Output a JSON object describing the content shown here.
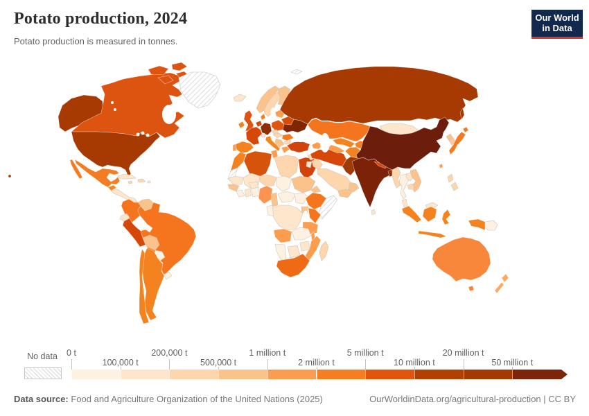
{
  "header": {
    "title": "Potato production, 2024",
    "subtitle": "Potato production is measured in tonnes.",
    "logo": {
      "line1": "Our World",
      "line2": "in Data",
      "bg": "#12294d",
      "accent": "#dc352c"
    }
  },
  "legend": {
    "no_data_label": "No data",
    "tick_labels": [
      {
        "text": "0 t",
        "row": "top"
      },
      {
        "text": "100,000 t",
        "row": "bottom"
      },
      {
        "text": "200,000 t",
        "row": "top"
      },
      {
        "text": "500,000 t",
        "row": "bottom"
      },
      {
        "text": "1 million t",
        "row": "top"
      },
      {
        "text": "2 million t",
        "row": "bottom"
      },
      {
        "text": "5 million t",
        "row": "top"
      },
      {
        "text": "10 million t",
        "row": "bottom"
      },
      {
        "text": "20 million t",
        "row": "top"
      },
      {
        "text": "50 million t",
        "row": "bottom"
      }
    ],
    "bin_colors": [
      "#fdf1e2",
      "#fde6cb",
      "#fdd6ae",
      "#fcc28c",
      "#fb9c4e",
      "#f57e22",
      "#e1560e",
      "#b14001",
      "#a23a02",
      "#7d250a"
    ]
  },
  "footer": {
    "source_label": "Data source:",
    "source_text": " Food and Agriculture Organization of the United Nations (2025)",
    "credit_text": "OurWorldinData.org/agricultural-production | CC BY"
  },
  "chart_data": {
    "type": "choropleth",
    "title": "Potato production, 2024",
    "unit": "tonnes",
    "year": 2024,
    "legend_bins": [
      {
        "range": "0 t – 100,000 t",
        "color": "#fdf1e2"
      },
      {
        "range": "100,000 t – 200,000 t",
        "color": "#fde6cb"
      },
      {
        "range": "200,000 t – 500,000 t",
        "color": "#fdd6ae"
      },
      {
        "range": "500,000 t – 1 million t",
        "color": "#fcc28c"
      },
      {
        "range": "1 – 2 million t",
        "color": "#fb9c4e"
      },
      {
        "range": "2 – 5 million t",
        "color": "#f57e22"
      },
      {
        "range": "5 – 10 million t",
        "color": "#e1560e"
      },
      {
        "range": "10 – 20 million t",
        "color": "#b14001"
      },
      {
        "range": "20 – 50 million t",
        "color": "#a23a02"
      },
      {
        "range": "50+ million t",
        "color": "#7d250a"
      },
      {
        "range": "No data",
        "color": "hatch"
      }
    ],
    "countries": [
      {
        "id": "alaska",
        "color": "#a63a02",
        "bin": "20 – 50 million t"
      },
      {
        "id": "hawaii",
        "color": "#a63a02",
        "bin": "20 – 50 million t"
      },
      {
        "id": "canada",
        "color": "#dd5310",
        "bin": "5 – 10 million t"
      },
      {
        "id": "usa",
        "color": "#a63a02",
        "bin": "20 – 50 million t"
      },
      {
        "id": "greenland",
        "color": "no-data",
        "bin": "No data"
      },
      {
        "id": "mexico",
        "color": "#f47d23",
        "bin": "2 – 5 million t"
      },
      {
        "id": "guatemala",
        "color": "#f4861f",
        "bin": "2 – 5 million t"
      },
      {
        "id": "central-america",
        "color": "#fde6cb",
        "bin": "100,000 t – 200,000 t"
      },
      {
        "id": "cuba",
        "color": "#fde6cb",
        "bin": "100,000 t – 200,000 t"
      },
      {
        "id": "hispaniola",
        "color": "#fdd6ae",
        "bin": "200,000 t – 500,000 t"
      },
      {
        "id": "jamaica",
        "color": "#fdd6ae",
        "bin": "200,000 t – 500,000 t"
      },
      {
        "id": "puerto-rico",
        "color": "#fde6cb",
        "bin": "100,000 t – 200,000 t"
      },
      {
        "id": "colombia",
        "color": "#f4751d",
        "bin": "2 – 5 million t"
      },
      {
        "id": "venezuela",
        "color": "#fcc28c",
        "bin": "500,000 t – 1 million t"
      },
      {
        "id": "guyana-suriname",
        "color": "no-data",
        "bin": "No data"
      },
      {
        "id": "ecuador",
        "color": "#fde6cb",
        "bin": "100,000 t – 200,000 t"
      },
      {
        "id": "peru",
        "color": "#d6470a",
        "bin": "5 – 10 million t"
      },
      {
        "id": "brazil",
        "color": "#f4751d",
        "bin": "2 – 5 million t"
      },
      {
        "id": "bolivia",
        "color": "#fcc28c",
        "bin": "500,000 t – 1 million t"
      },
      {
        "id": "paraguay",
        "color": "#fdf1e2",
        "bin": "0 t – 100,000 t"
      },
      {
        "id": "uruguay",
        "color": "#fdf1e2",
        "bin": "0 t – 100,000 t"
      },
      {
        "id": "argentina",
        "color": "#f4821f",
        "bin": "2 – 5 million t"
      },
      {
        "id": "chile",
        "color": "#f4821f",
        "bin": "2 – 5 million t"
      },
      {
        "id": "iceland",
        "color": "#fde6cb",
        "bin": "100,000 t – 200,000 t"
      },
      {
        "id": "uk",
        "color": "#dd5310",
        "bin": "5 – 10 million t"
      },
      {
        "id": "ireland",
        "color": "#f4821f",
        "bin": "2 – 5 million t"
      },
      {
        "id": "norway",
        "color": "#fcc28c",
        "bin": "500,000 t – 1 million t"
      },
      {
        "id": "sweden",
        "color": "#fdd6ae",
        "bin": "200,000 t – 500,000 t"
      },
      {
        "id": "finland",
        "color": "#fcc28c",
        "bin": "500,000 t – 1 million t"
      },
      {
        "id": "denmark",
        "color": "#f4791f",
        "bin": "2 – 5 million t"
      },
      {
        "id": "baltics",
        "color": "#fb9c4e",
        "bin": "1 – 2 million t"
      },
      {
        "id": "belarus",
        "color": "#d24d08",
        "bin": "5 – 10 million t"
      },
      {
        "id": "netherlands-belgium",
        "color": "#c9480a",
        "bin": "5 – 10 million t"
      },
      {
        "id": "germany",
        "color": "#8f2d04",
        "bin": "10 – 20 million t"
      },
      {
        "id": "poland",
        "color": "#e1560e",
        "bin": "5 – 10 million t"
      },
      {
        "id": "france",
        "color": "#d6470a",
        "bin": "5 – 10 million t"
      },
      {
        "id": "spain",
        "color": "#f4821f",
        "bin": "2 – 5 million t"
      },
      {
        "id": "portugal",
        "color": "#fb9c4e",
        "bin": "1 – 2 million t"
      },
      {
        "id": "italy",
        "color": "#f4861f",
        "bin": "2 – 5 million t"
      },
      {
        "id": "switzerland",
        "color": "#fde6cb",
        "bin": "100,000 t – 200,000 t"
      },
      {
        "id": "czechia",
        "color": "#fdd6ae",
        "bin": "200,000 t – 500,000 t"
      },
      {
        "id": "austria-hungary",
        "color": "#fdd6ae",
        "bin": "200,000 t – 500,000 t"
      },
      {
        "id": "romania",
        "color": "#f4791f",
        "bin": "2 – 5 million t"
      },
      {
        "id": "balkans",
        "color": "#fcc28c",
        "bin": "500,000 t – 1 million t"
      },
      {
        "id": "bulgaria",
        "color": "#fdd6ae",
        "bin": "200,000 t – 500,000 t"
      },
      {
        "id": "greece",
        "color": "#fb9c4e",
        "bin": "1 – 2 million t"
      },
      {
        "id": "ukraine",
        "color": "#7f2704",
        "bin": "20 – 50 million t"
      },
      {
        "id": "russia",
        "color": "#a63a02",
        "bin": "20 – 50 million t"
      },
      {
        "id": "svalbard",
        "color": "no-data",
        "bin": "No data"
      },
      {
        "id": "kazakhstan",
        "color": "#f4751d",
        "bin": "2 – 5 million t"
      },
      {
        "id": "uzbekistan",
        "color": "#f4821f",
        "bin": "2 – 5 million t"
      },
      {
        "id": "turkmenistan",
        "color": "#fb9c4e",
        "bin": "1 – 2 million t"
      },
      {
        "id": "kyrgyzstan-tajikistan",
        "color": "#f4821f",
        "bin": "2 – 5 million t"
      },
      {
        "id": "afghanistan",
        "color": "#f4821f",
        "bin": "2 – 5 million t"
      },
      {
        "id": "pakistan",
        "color": "#9e3a03",
        "bin": "10 – 20 million t"
      },
      {
        "id": "iran",
        "color": "#d6470a",
        "bin": "5 – 10 million t"
      },
      {
        "id": "iraq",
        "color": "#fdd6ae",
        "bin": "200,000 t – 500,000 t"
      },
      {
        "id": "syria",
        "color": "#fdd6ae",
        "bin": "200,000 t – 500,000 t"
      },
      {
        "id": "jordan-israel",
        "color": "#fde6cb",
        "bin": "100,000 t – 200,000 t"
      },
      {
        "id": "saudi-arabia",
        "color": "#fdd6ae",
        "bin": "200,000 t – 500,000 t"
      },
      {
        "id": "yemen",
        "color": "#fcc28c",
        "bin": "500,000 t – 1 million t"
      },
      {
        "id": "oman",
        "color": "#fcc28c",
        "bin": "500,000 t – 1 million t"
      },
      {
        "id": "caucasus",
        "color": "#fb9c4e",
        "bin": "1 – 2 million t"
      },
      {
        "id": "turkey",
        "color": "#d1430a",
        "bin": "5 – 10 million t"
      },
      {
        "id": "india",
        "color": "#7b2209",
        "bin": "50+ million t"
      },
      {
        "id": "nepal",
        "color": "#d6470a",
        "bin": "5 – 10 million t"
      },
      {
        "id": "bangladesh",
        "color": "#8f2d04",
        "bin": "10 – 20 million t"
      },
      {
        "id": "sri-lanka",
        "color": "#fde6cb",
        "bin": "100,000 t – 200,000 t"
      },
      {
        "id": "myanmar",
        "color": "#fdd6ae",
        "bin": "200,000 t – 500,000 t"
      },
      {
        "id": "thailand",
        "color": "#fdf1e2",
        "bin": "0 t – 100,000 t"
      },
      {
        "id": "laos",
        "color": "#fde6cb",
        "bin": "100,000 t – 200,000 t"
      },
      {
        "id": "vietnam",
        "color": "#fcc28c",
        "bin": "500,000 t – 1 million t"
      },
      {
        "id": "cambodia",
        "color": "#fdd6ae",
        "bin": "200,000 t – 500,000 t"
      },
      {
        "id": "malaysia",
        "color": "#fde6cb",
        "bin": "100,000 t – 200,000 t"
      },
      {
        "id": "china",
        "color": "#6d1d0b",
        "bin": "50+ million t"
      },
      {
        "id": "mongolia",
        "color": "#fde6cb",
        "bin": "100,000 t – 200,000 t"
      },
      {
        "id": "north-korea",
        "color": "#fcc28c",
        "bin": "500,000 t – 1 million t"
      },
      {
        "id": "south-korea",
        "color": "#fcc89c",
        "bin": "500,000 t – 1 million t"
      },
      {
        "id": "japan",
        "color": "#f4791f",
        "bin": "2 – 5 million t"
      },
      {
        "id": "taiwan",
        "color": "#fb9c4e",
        "bin": "1 – 2 million t"
      },
      {
        "id": "philippines",
        "color": "#fdd6ae",
        "bin": "200,000 t – 500,000 t"
      },
      {
        "id": "indonesia",
        "color": "#f4821f",
        "bin": "2 – 5 million t"
      },
      {
        "id": "papua-new-guinea",
        "color": "#fdf1e2",
        "bin": "0 t – 100,000 t"
      },
      {
        "id": "australia",
        "color": "#f8863b",
        "bin": "1 – 2 million t"
      },
      {
        "id": "new-zealand",
        "color": "#fbaa63",
        "bin": "1 – 2 million t"
      },
      {
        "id": "morocco",
        "color": "#f4821f",
        "bin": "2 – 5 million t"
      },
      {
        "id": "western-sahara",
        "color": "no-data",
        "bin": "No data"
      },
      {
        "id": "algeria",
        "color": "#d6530b",
        "bin": "5 – 10 million t"
      },
      {
        "id": "tunisia",
        "color": "#fb9c4e",
        "bin": "1 – 2 million t"
      },
      {
        "id": "libya",
        "color": "#fdd6ae",
        "bin": "200,000 t – 500,000 t"
      },
      {
        "id": "egypt",
        "color": "#d1430a",
        "bin": "5 – 10 million t"
      },
      {
        "id": "mauritania",
        "color": "#fde6cb",
        "bin": "100,000 t – 200,000 t"
      },
      {
        "id": "mali",
        "color": "#fde6cb",
        "bin": "100,000 t – 200,000 t"
      },
      {
        "id": "niger",
        "color": "#fdd6ae",
        "bin": "200,000 t – 500,000 t"
      },
      {
        "id": "chad",
        "color": "#fdf1e2",
        "bin": "0 t – 100,000 t"
      },
      {
        "id": "sudan",
        "color": "#fcc28c",
        "bin": "500,000 t – 1 million t"
      },
      {
        "id": "eritrea",
        "color": "#fcc28c",
        "bin": "500,000 t – 1 million t"
      },
      {
        "id": "senegal-guinea",
        "color": "#fcc28c",
        "bin": "500,000 t – 1 million t"
      },
      {
        "id": "sierra-leone-liberia",
        "color": "#fdf1e2",
        "bin": "0 t – 100,000 t"
      },
      {
        "id": "ivory-coast",
        "color": "#fde6cb",
        "bin": "100,000 t – 200,000 t"
      },
      {
        "id": "ghana",
        "color": "#fdf1e2",
        "bin": "0 t – 100,000 t"
      },
      {
        "id": "burkina-faso",
        "color": "#fde6cb",
        "bin": "100,000 t – 200,000 t"
      },
      {
        "id": "nigeria",
        "color": "#fb9450",
        "bin": "1 – 2 million t"
      },
      {
        "id": "cameroon",
        "color": "#fcc28c",
        "bin": "500,000 t – 1 million t"
      },
      {
        "id": "central-african-republic",
        "color": "#fdf1e2",
        "bin": "0 t – 100,000 t"
      },
      {
        "id": "south-sudan",
        "color": "#fdf1e2",
        "bin": "0 t – 100,000 t"
      },
      {
        "id": "ethiopia",
        "color": "#f4751d",
        "bin": "2 – 5 million t"
      },
      {
        "id": "somalia",
        "color": "no-data",
        "bin": "No data"
      },
      {
        "id": "uganda",
        "color": "#fcc28c",
        "bin": "500,000 t – 1 million t"
      },
      {
        "id": "kenya",
        "color": "#f4751d",
        "bin": "2 – 5 million t"
      },
      {
        "id": "drc",
        "color": "#fde6cb",
        "bin": "100,000 t – 200,000 t"
      },
      {
        "id": "congo-gabon",
        "color": "#fdf1e2",
        "bin": "0 t – 100,000 t"
      },
      {
        "id": "tanzania",
        "color": "#fb9c4e",
        "bin": "1 – 2 million t"
      },
      {
        "id": "angola",
        "color": "#fb9c4e",
        "bin": "1 – 2 million t"
      },
      {
        "id": "zambia",
        "color": "#fdf1e2",
        "bin": "0 t – 100,000 t"
      },
      {
        "id": "malawi",
        "color": "#fb9c4e",
        "bin": "1 – 2 million t"
      },
      {
        "id": "mozambique",
        "color": "#fb9c4e",
        "bin": "1 – 2 million t"
      },
      {
        "id": "zimbabwe",
        "color": "#fde6cb",
        "bin": "100,000 t – 200,000 t"
      },
      {
        "id": "namibia",
        "color": "#fdf1e2",
        "bin": "0 t – 100,000 t"
      },
      {
        "id": "botswana",
        "color": "#fde6cb",
        "bin": "100,000 t – 200,000 t"
      },
      {
        "id": "south-africa",
        "color": "#ef6a14",
        "bin": "2 – 5 million t"
      },
      {
        "id": "madagascar",
        "color": "#fdd6ae",
        "bin": "200,000 t – 500,000 t"
      }
    ]
  }
}
